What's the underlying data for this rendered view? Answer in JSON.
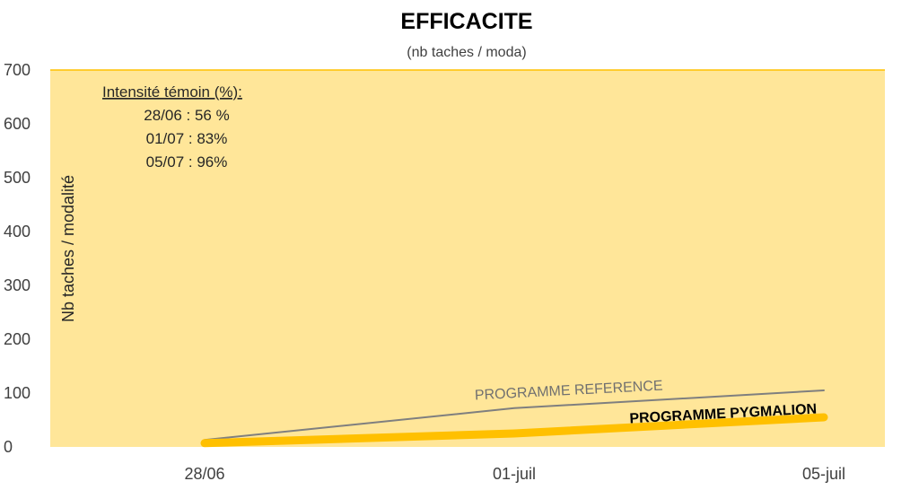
{
  "chart_data": {
    "type": "line",
    "title": "EFFICACITE",
    "subtitle": "(nb taches / moda)",
    "ylabel": "Nb taches / modalité",
    "xlabel": "",
    "categories": [
      "28/06",
      "01-juil",
      "05-juil"
    ],
    "ylim": [
      0,
      700
    ],
    "yticks": [
      "0",
      "100",
      "200",
      "300",
      "400",
      "500",
      "600",
      "700"
    ],
    "series": [
      {
        "name": "PROGRAMME REFERENCE",
        "values": [
          13,
          72,
          105
        ],
        "color": "#7f7f7f"
      },
      {
        "name": "PROGRAMME PYGMALION",
        "values": [
          7,
          25,
          55
        ],
        "color": "#ffc000"
      }
    ],
    "annotation": {
      "heading": "Intensité témoin (%):",
      "lines": [
        "28/06 : 56 %",
        "01/07 : 83%",
        "05/07 : 96%"
      ]
    },
    "plot_background": "#ffe699",
    "plot_border": "#ffc000"
  }
}
